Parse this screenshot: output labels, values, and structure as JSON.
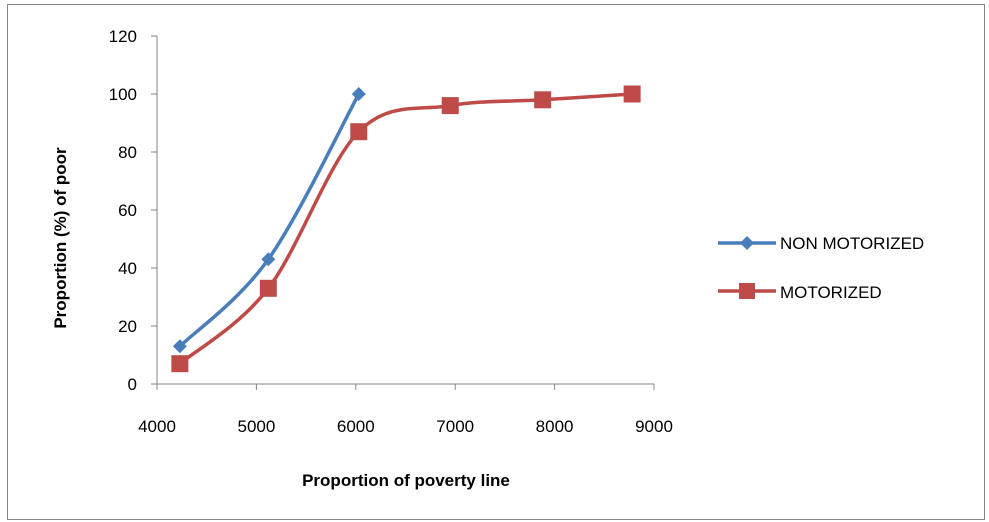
{
  "chart_data": {
    "type": "line",
    "title": "",
    "xlabel": "Proportion  of poverty line",
    "ylabel": "Proportion  (%) of poor",
    "xlim": [
      4000,
      9000
    ],
    "ylim": [
      0,
      120
    ],
    "x_ticks": [
      "4000",
      "5000",
      "6000",
      "7000",
      "8000",
      "9000"
    ],
    "y_ticks": [
      "0",
      "20",
      "40",
      "60",
      "80",
      "100",
      "120"
    ],
    "grid": false,
    "smooth": true,
    "legend_position": "right",
    "series": [
      {
        "name": "NON MOTORIZED",
        "color": "#4a7ebb",
        "marker": "diamond",
        "x": [
          4230,
          5120,
          6030
        ],
        "y": [
          13,
          43,
          100
        ]
      },
      {
        "name": "MOTORIZED",
        "color": "#be4b48",
        "marker": "square",
        "x": [
          4230,
          5120,
          6030,
          6950,
          7880,
          8780
        ],
        "y": [
          7,
          33,
          87,
          96,
          98,
          100
        ]
      }
    ]
  }
}
